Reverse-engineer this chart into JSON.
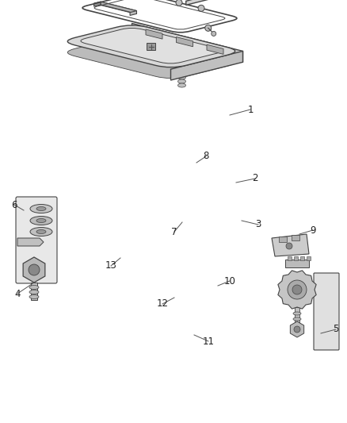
{
  "background_color": "#ffffff",
  "line_color": "#444444",
  "label_color": "#333333",
  "fig_width": 4.38,
  "fig_height": 5.33,
  "dpi": 100,
  "panel_fc": "#e8e8e8",
  "panel_edge_fc": "#cccccc",
  "panel_inner_fc": "#f0f0f0",
  "tray_fc": "#d8d8d8",
  "tray_rim_fc": "#c0c0c0"
}
